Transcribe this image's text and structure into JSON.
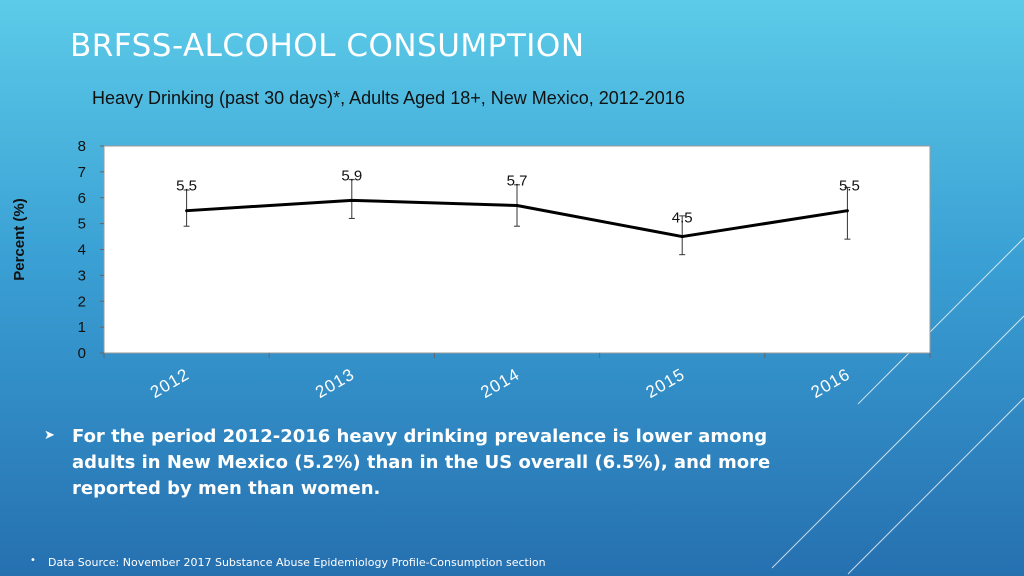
{
  "slide": {
    "title": "BRFSS-ALCOHOL CONSUMPTION",
    "finding": "For the period 2012-2016 heavy drinking prevalence is lower among adults in New Mexico (5.2%) than in the US overall (6.5%), and more reported by men than women.",
    "source": "Data Source: November 2017 Substance Abuse Epidemiology Profile-Consumption section"
  },
  "chart_data": {
    "type": "line",
    "title": "Heavy Drinking (past 30 days)*, Adults Aged 18+, New Mexico, 2012-2016",
    "xlabel": "",
    "ylabel": "Percent (%)",
    "categories": [
      "2012",
      "2013",
      "2014",
      "2015",
      "2016"
    ],
    "values": [
      5.5,
      5.9,
      5.7,
      4.5,
      5.5
    ],
    "labels": [
      "5.5",
      "5.9",
      "5.7",
      "4.5",
      "5.5"
    ],
    "error_low": [
      4.9,
      5.2,
      4.9,
      3.8,
      4.4
    ],
    "error_high": [
      6.3,
      6.7,
      6.5,
      5.3,
      6.4
    ],
    "ylim": [
      0,
      8
    ],
    "yticks": [
      "0",
      "1",
      "2",
      "3",
      "4",
      "5",
      "6",
      "7",
      "8"
    ],
    "grid": false,
    "legend": "none",
    "line_color": "#000000"
  }
}
